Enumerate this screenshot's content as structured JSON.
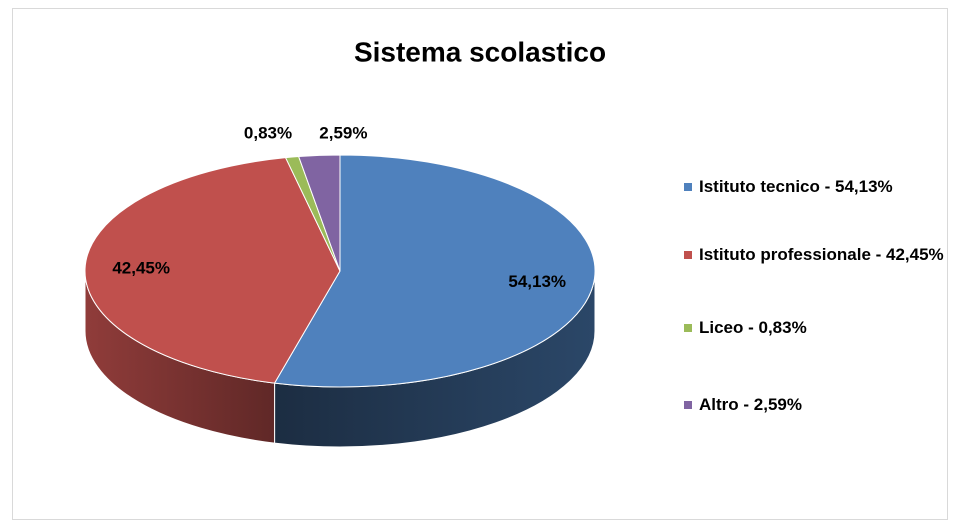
{
  "chart_data": {
    "type": "pie",
    "title": "Sistema scolastico",
    "categories": [
      "Istituto tecnico - 54,13%",
      "Istituto professionale - 42,45%",
      "Liceo - 0,83%",
      "Altro - 2,59%"
    ],
    "values": [
      54.13,
      42.45,
      0.83,
      2.59
    ],
    "value_labels": [
      "54,13%",
      "42,45%",
      "0,83%",
      "2,59%"
    ],
    "colors": [
      "#4f81bd",
      "#c0504d",
      "#9bbb59",
      "#8064a2"
    ],
    "legend": "right"
  }
}
